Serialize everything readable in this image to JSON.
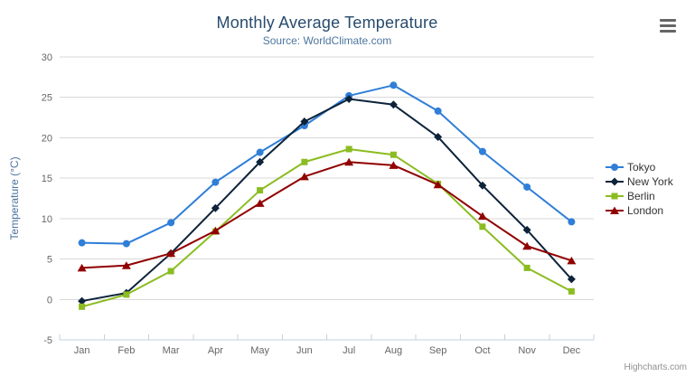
{
  "chart_data": {
    "type": "line",
    "title": "Monthly Average Temperature",
    "subtitle": "Source: WorldClimate.com",
    "xlabel": "",
    "ylabel": "Temperature (°C)",
    "ylim": [
      -5,
      30
    ],
    "yticks": [
      -5,
      0,
      5,
      10,
      15,
      20,
      25,
      30
    ],
    "grid": true,
    "legend_position": "right",
    "categories": [
      "Jan",
      "Feb",
      "Mar",
      "Apr",
      "May",
      "Jun",
      "Jul",
      "Aug",
      "Sep",
      "Oct",
      "Nov",
      "Dec"
    ],
    "series": [
      {
        "name": "Tokyo",
        "color": "#2f7ed8",
        "marker": "circle",
        "values": [
          7.0,
          6.9,
          9.5,
          14.5,
          18.2,
          21.5,
          25.2,
          26.5,
          23.3,
          18.3,
          13.9,
          9.6
        ]
      },
      {
        "name": "New York",
        "color": "#0d233a",
        "marker": "diamond",
        "values": [
          -0.2,
          0.8,
          5.7,
          11.3,
          17.0,
          22.0,
          24.8,
          24.1,
          20.1,
          14.1,
          8.6,
          2.5
        ]
      },
      {
        "name": "Berlin",
        "color": "#8bbc21",
        "marker": "square",
        "values": [
          -0.9,
          0.6,
          3.5,
          8.4,
          13.5,
          17.0,
          18.6,
          17.9,
          14.3,
          9.0,
          3.9,
          1.0
        ]
      },
      {
        "name": "London",
        "color": "#910000",
        "marker": "triangle",
        "values": [
          3.9,
          4.2,
          5.7,
          8.5,
          11.9,
          15.2,
          17.0,
          16.6,
          14.2,
          10.3,
          6.6,
          4.8
        ]
      }
    ]
  },
  "colors": {
    "title_text": "#274b6d",
    "subtitle_text": "#4d759e",
    "axis_title_text": "#4d759e",
    "tick_label_text": "#666666",
    "grid_line": "#d8d8d8",
    "axis_line": "#c0d0e0",
    "legend_text": "#333333",
    "menu_icon": "#666666",
    "credit_text": "#909090"
  },
  "credit": {
    "label": "Highcharts.com"
  }
}
